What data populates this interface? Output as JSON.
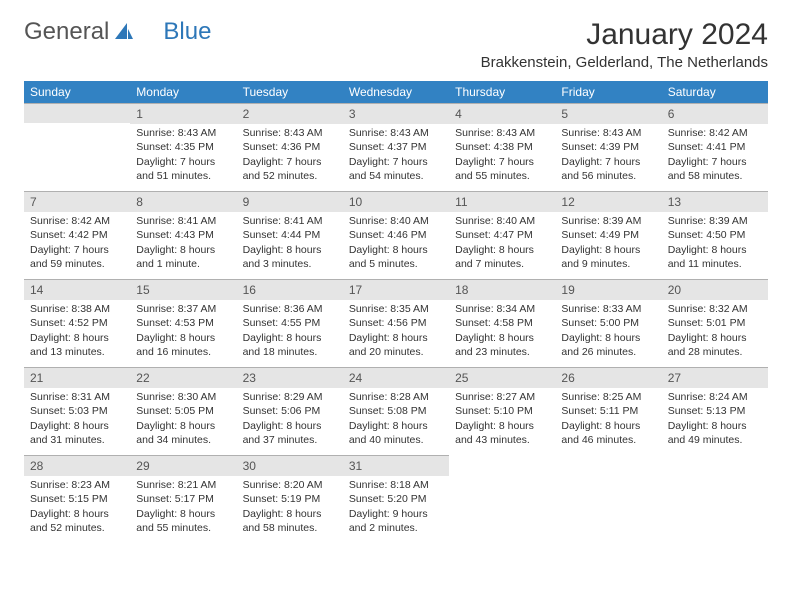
{
  "logo": {
    "part1": "General",
    "part2": "Blue"
  },
  "title": "January 2024",
  "location": "Brakkenstein, Gelderland, The Netherlands",
  "weekdays": [
    "Sunday",
    "Monday",
    "Tuesday",
    "Wednesday",
    "Thursday",
    "Friday",
    "Saturday"
  ],
  "colors": {
    "header_bg": "#3282c3",
    "header_text": "#ffffff",
    "daynum_bg": "#e5e5e5",
    "border": "#b0b0b0",
    "text": "#333333",
    "logo_blue": "#2d77b8"
  },
  "weeks": [
    [
      null,
      {
        "n": "1",
        "sunrise": "Sunrise: 8:43 AM",
        "sunset": "Sunset: 4:35 PM",
        "day1": "Daylight: 7 hours",
        "day2": "and 51 minutes."
      },
      {
        "n": "2",
        "sunrise": "Sunrise: 8:43 AM",
        "sunset": "Sunset: 4:36 PM",
        "day1": "Daylight: 7 hours",
        "day2": "and 52 minutes."
      },
      {
        "n": "3",
        "sunrise": "Sunrise: 8:43 AM",
        "sunset": "Sunset: 4:37 PM",
        "day1": "Daylight: 7 hours",
        "day2": "and 54 minutes."
      },
      {
        "n": "4",
        "sunrise": "Sunrise: 8:43 AM",
        "sunset": "Sunset: 4:38 PM",
        "day1": "Daylight: 7 hours",
        "day2": "and 55 minutes."
      },
      {
        "n": "5",
        "sunrise": "Sunrise: 8:43 AM",
        "sunset": "Sunset: 4:39 PM",
        "day1": "Daylight: 7 hours",
        "day2": "and 56 minutes."
      },
      {
        "n": "6",
        "sunrise": "Sunrise: 8:42 AM",
        "sunset": "Sunset: 4:41 PM",
        "day1": "Daylight: 7 hours",
        "day2": "and 58 minutes."
      }
    ],
    [
      {
        "n": "7",
        "sunrise": "Sunrise: 8:42 AM",
        "sunset": "Sunset: 4:42 PM",
        "day1": "Daylight: 7 hours",
        "day2": "and 59 minutes."
      },
      {
        "n": "8",
        "sunrise": "Sunrise: 8:41 AM",
        "sunset": "Sunset: 4:43 PM",
        "day1": "Daylight: 8 hours",
        "day2": "and 1 minute."
      },
      {
        "n": "9",
        "sunrise": "Sunrise: 8:41 AM",
        "sunset": "Sunset: 4:44 PM",
        "day1": "Daylight: 8 hours",
        "day2": "and 3 minutes."
      },
      {
        "n": "10",
        "sunrise": "Sunrise: 8:40 AM",
        "sunset": "Sunset: 4:46 PM",
        "day1": "Daylight: 8 hours",
        "day2": "and 5 minutes."
      },
      {
        "n": "11",
        "sunrise": "Sunrise: 8:40 AM",
        "sunset": "Sunset: 4:47 PM",
        "day1": "Daylight: 8 hours",
        "day2": "and 7 minutes."
      },
      {
        "n": "12",
        "sunrise": "Sunrise: 8:39 AM",
        "sunset": "Sunset: 4:49 PM",
        "day1": "Daylight: 8 hours",
        "day2": "and 9 minutes."
      },
      {
        "n": "13",
        "sunrise": "Sunrise: 8:39 AM",
        "sunset": "Sunset: 4:50 PM",
        "day1": "Daylight: 8 hours",
        "day2": "and 11 minutes."
      }
    ],
    [
      {
        "n": "14",
        "sunrise": "Sunrise: 8:38 AM",
        "sunset": "Sunset: 4:52 PM",
        "day1": "Daylight: 8 hours",
        "day2": "and 13 minutes."
      },
      {
        "n": "15",
        "sunrise": "Sunrise: 8:37 AM",
        "sunset": "Sunset: 4:53 PM",
        "day1": "Daylight: 8 hours",
        "day2": "and 16 minutes."
      },
      {
        "n": "16",
        "sunrise": "Sunrise: 8:36 AM",
        "sunset": "Sunset: 4:55 PM",
        "day1": "Daylight: 8 hours",
        "day2": "and 18 minutes."
      },
      {
        "n": "17",
        "sunrise": "Sunrise: 8:35 AM",
        "sunset": "Sunset: 4:56 PM",
        "day1": "Daylight: 8 hours",
        "day2": "and 20 minutes."
      },
      {
        "n": "18",
        "sunrise": "Sunrise: 8:34 AM",
        "sunset": "Sunset: 4:58 PM",
        "day1": "Daylight: 8 hours",
        "day2": "and 23 minutes."
      },
      {
        "n": "19",
        "sunrise": "Sunrise: 8:33 AM",
        "sunset": "Sunset: 5:00 PM",
        "day1": "Daylight: 8 hours",
        "day2": "and 26 minutes."
      },
      {
        "n": "20",
        "sunrise": "Sunrise: 8:32 AM",
        "sunset": "Sunset: 5:01 PM",
        "day1": "Daylight: 8 hours",
        "day2": "and 28 minutes."
      }
    ],
    [
      {
        "n": "21",
        "sunrise": "Sunrise: 8:31 AM",
        "sunset": "Sunset: 5:03 PM",
        "day1": "Daylight: 8 hours",
        "day2": "and 31 minutes."
      },
      {
        "n": "22",
        "sunrise": "Sunrise: 8:30 AM",
        "sunset": "Sunset: 5:05 PM",
        "day1": "Daylight: 8 hours",
        "day2": "and 34 minutes."
      },
      {
        "n": "23",
        "sunrise": "Sunrise: 8:29 AM",
        "sunset": "Sunset: 5:06 PM",
        "day1": "Daylight: 8 hours",
        "day2": "and 37 minutes."
      },
      {
        "n": "24",
        "sunrise": "Sunrise: 8:28 AM",
        "sunset": "Sunset: 5:08 PM",
        "day1": "Daylight: 8 hours",
        "day2": "and 40 minutes."
      },
      {
        "n": "25",
        "sunrise": "Sunrise: 8:27 AM",
        "sunset": "Sunset: 5:10 PM",
        "day1": "Daylight: 8 hours",
        "day2": "and 43 minutes."
      },
      {
        "n": "26",
        "sunrise": "Sunrise: 8:25 AM",
        "sunset": "Sunset: 5:11 PM",
        "day1": "Daylight: 8 hours",
        "day2": "and 46 minutes."
      },
      {
        "n": "27",
        "sunrise": "Sunrise: 8:24 AM",
        "sunset": "Sunset: 5:13 PM",
        "day1": "Daylight: 8 hours",
        "day2": "and 49 minutes."
      }
    ],
    [
      {
        "n": "28",
        "sunrise": "Sunrise: 8:23 AM",
        "sunset": "Sunset: 5:15 PM",
        "day1": "Daylight: 8 hours",
        "day2": "and 52 minutes."
      },
      {
        "n": "29",
        "sunrise": "Sunrise: 8:21 AM",
        "sunset": "Sunset: 5:17 PM",
        "day1": "Daylight: 8 hours",
        "day2": "and 55 minutes."
      },
      {
        "n": "30",
        "sunrise": "Sunrise: 8:20 AM",
        "sunset": "Sunset: 5:19 PM",
        "day1": "Daylight: 8 hours",
        "day2": "and 58 minutes."
      },
      {
        "n": "31",
        "sunrise": "Sunrise: 8:18 AM",
        "sunset": "Sunset: 5:20 PM",
        "day1": "Daylight: 9 hours",
        "day2": "and 2 minutes."
      },
      null,
      null,
      null
    ]
  ]
}
